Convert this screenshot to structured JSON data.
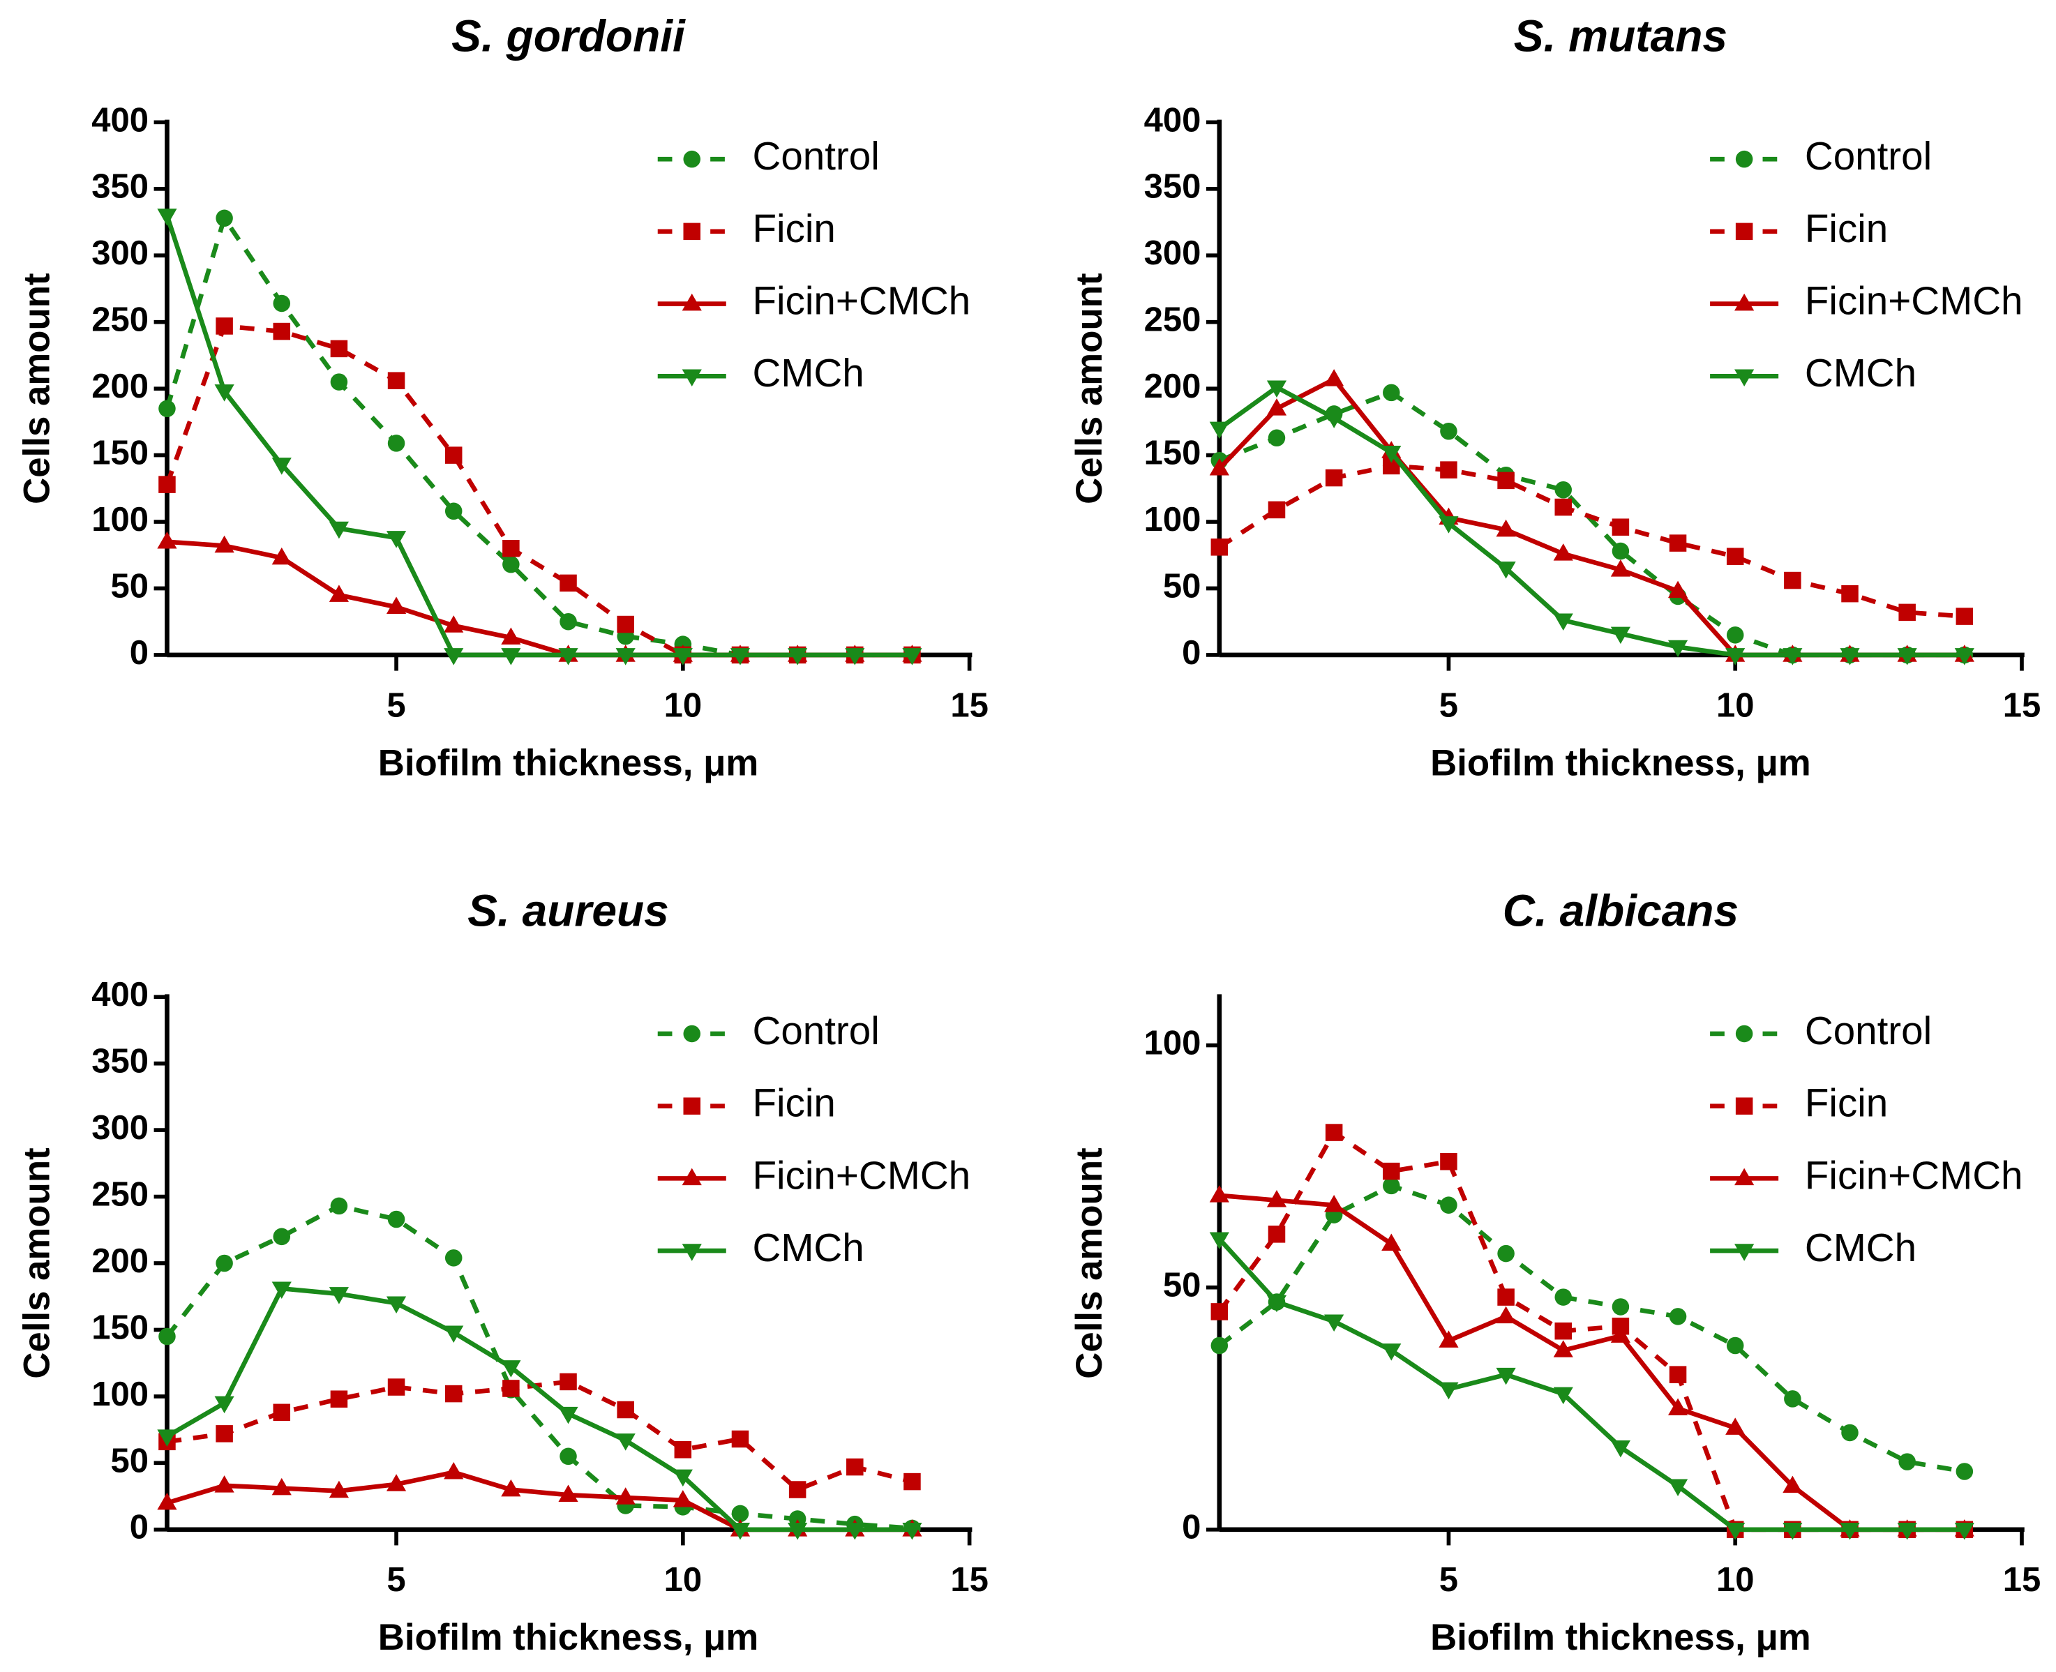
{
  "chart_data": [
    {
      "type": "line",
      "title": "S. gordonii",
      "xlabel": "Biofilm thickness, μm",
      "ylabel": "Cells amount",
      "x": [
        1,
        2,
        3,
        4,
        5,
        6,
        7,
        8,
        9,
        10,
        11,
        12,
        13,
        14
      ],
      "xlim": [
        1,
        15
      ],
      "xticks": [
        5,
        10,
        15
      ],
      "ylim": [
        0,
        400
      ],
      "yticks": [
        0,
        50,
        100,
        150,
        200,
        250,
        300,
        350,
        400
      ],
      "series": [
        {
          "name": "Control",
          "color": "#1a8a1a",
          "dashed": true,
          "marker": "circle",
          "values": [
            185,
            328,
            264,
            205,
            159,
            108,
            68,
            25,
            14,
            8,
            0,
            0,
            0,
            0
          ]
        },
        {
          "name": "Ficin",
          "color": "#c00000",
          "dashed": true,
          "marker": "square",
          "values": [
            128,
            247,
            243,
            230,
            206,
            150,
            80,
            54,
            23,
            0,
            0,
            0,
            0,
            0
          ]
        },
        {
          "name": "Ficin+CMCh",
          "color": "#c00000",
          "dashed": false,
          "marker": "triangle-up",
          "values": [
            85,
            82,
            73,
            45,
            36,
            22,
            13,
            0,
            0,
            0,
            0,
            0,
            0,
            0
          ]
        },
        {
          "name": "CMCh",
          "color": "#1a8a1a",
          "dashed": false,
          "marker": "triangle-down",
          "values": [
            330,
            198,
            143,
            95,
            88,
            0,
            0,
            0,
            0,
            0,
            0,
            0,
            0,
            0
          ]
        }
      ]
    },
    {
      "type": "line",
      "title": "S. mutans",
      "xlabel": "Biofilm thickness, μm",
      "ylabel": "Cells amount",
      "x": [
        1,
        2,
        3,
        4,
        5,
        6,
        7,
        8,
        9,
        10,
        11,
        12,
        13,
        14
      ],
      "xlim": [
        1,
        15
      ],
      "xticks": [
        5,
        10,
        15
      ],
      "ylim": [
        0,
        400
      ],
      "yticks": [
        0,
        50,
        100,
        150,
        200,
        250,
        300,
        350,
        400
      ],
      "series": [
        {
          "name": "Control",
          "color": "#1a8a1a",
          "dashed": true,
          "marker": "circle",
          "values": [
            146,
            163,
            181,
            197,
            168,
            135,
            124,
            78,
            44,
            15,
            0,
            0,
            0,
            0
          ]
        },
        {
          "name": "Ficin",
          "color": "#c00000",
          "dashed": true,
          "marker": "square",
          "values": [
            81,
            109,
            133,
            142,
            139,
            131,
            111,
            96,
            84,
            74,
            56,
            46,
            32,
            29
          ]
        },
        {
          "name": "Ficin+CMCh",
          "color": "#c00000",
          "dashed": false,
          "marker": "triangle-up",
          "values": [
            140,
            185,
            207,
            153,
            103,
            94,
            76,
            64,
            48,
            0,
            0,
            0,
            0,
            0
          ]
        },
        {
          "name": "CMCh",
          "color": "#1a8a1a",
          "dashed": false,
          "marker": "triangle-down",
          "values": [
            170,
            201,
            178,
            152,
            99,
            65,
            26,
            16,
            6,
            0,
            0,
            0,
            0,
            0
          ]
        }
      ]
    },
    {
      "type": "line",
      "title": "S. aureus",
      "xlabel": "Biofilm thickness, μm",
      "ylabel": "Cells amount",
      "x": [
        1,
        2,
        3,
        4,
        5,
        6,
        7,
        8,
        9,
        10,
        11,
        12,
        13,
        14
      ],
      "xlim": [
        1,
        15
      ],
      "xticks": [
        5,
        10,
        15
      ],
      "ylim": [
        0,
        400
      ],
      "yticks": [
        0,
        50,
        100,
        150,
        200,
        250,
        300,
        350,
        400
      ],
      "series": [
        {
          "name": "Control",
          "color": "#1a8a1a",
          "dashed": true,
          "marker": "circle",
          "values": [
            145,
            200,
            220,
            243,
            233,
            204,
            105,
            55,
            18,
            17,
            12,
            8,
            4,
            1
          ]
        },
        {
          "name": "Ficin",
          "color": "#c00000",
          "dashed": true,
          "marker": "square",
          "values": [
            66,
            72,
            88,
            98,
            107,
            102,
            106,
            111,
            90,
            60,
            68,
            30,
            47,
            36
          ]
        },
        {
          "name": "Ficin+CMCh",
          "color": "#c00000",
          "dashed": false,
          "marker": "triangle-up",
          "values": [
            20,
            33,
            31,
            29,
            34,
            43,
            30,
            26,
            24,
            22,
            0,
            0,
            0,
            0
          ]
        },
        {
          "name": "CMCh",
          "color": "#1a8a1a",
          "dashed": false,
          "marker": "triangle-down",
          "values": [
            70,
            95,
            181,
            177,
            170,
            148,
            122,
            87,
            67,
            40,
            0,
            0,
            0,
            0
          ]
        }
      ]
    },
    {
      "type": "line",
      "title": "C. albicans",
      "xlabel": "Biofilm thickness, μm",
      "ylabel": "Cells amount",
      "x": [
        1,
        2,
        3,
        4,
        5,
        6,
        7,
        8,
        9,
        10,
        11,
        12,
        13,
        14
      ],
      "xlim": [
        1,
        15
      ],
      "xticks": [
        5,
        10,
        15
      ],
      "ylim": [
        0,
        110
      ],
      "yticks": [
        0,
        50,
        100
      ],
      "series": [
        {
          "name": "Control",
          "color": "#1a8a1a",
          "dashed": true,
          "marker": "circle",
          "values": [
            38,
            47,
            65,
            71,
            67,
            57,
            48,
            46,
            44,
            38,
            27,
            20,
            14,
            12
          ]
        },
        {
          "name": "Ficin",
          "color": "#c00000",
          "dashed": true,
          "marker": "square",
          "values": [
            45,
            61,
            82,
            74,
            76,
            48,
            41,
            42,
            32,
            0,
            0,
            0,
            0,
            0
          ]
        },
        {
          "name": "Ficin+CMCh",
          "color": "#c00000",
          "dashed": false,
          "marker": "triangle-up",
          "values": [
            69,
            68,
            67,
            59,
            39,
            44,
            37,
            40,
            25,
            21,
            9,
            0,
            0,
            0
          ]
        },
        {
          "name": "CMCh",
          "color": "#1a8a1a",
          "dashed": false,
          "marker": "triangle-down",
          "values": [
            60,
            47,
            43,
            37,
            29,
            32,
            28,
            17,
            9,
            0,
            0,
            0,
            0,
            0
          ]
        }
      ]
    }
  ]
}
